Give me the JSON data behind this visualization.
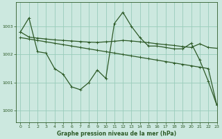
{
  "background_color": "#cce8df",
  "grid_color": "#99ccbb",
  "line_color": "#2d5a27",
  "title": "Graphe pression niveau de la mer (hPa)",
  "xlim": [
    -0.5,
    23
  ],
  "ylim": [
    999.6,
    1003.85
  ],
  "yticks": [
    1000,
    1001,
    1002,
    1003
  ],
  "xticks": [
    0,
    1,
    2,
    3,
    4,
    5,
    6,
    7,
    8,
    9,
    10,
    11,
    12,
    13,
    14,
    15,
    16,
    17,
    18,
    19,
    20,
    21,
    22,
    23
  ],
  "series_volatile": [
    1002.8,
    1003.3,
    1002.1,
    1002.05,
    1001.5,
    1001.3,
    1000.85,
    1000.75,
    1001.0,
    1001.45,
    1001.15,
    1003.1,
    1003.5,
    1003.0,
    1002.6,
    1002.3,
    1002.3,
    1002.25,
    1002.2,
    1002.2,
    1002.4,
    1001.8,
    1001.05,
    1000.2
  ],
  "series_flat": [
    1002.8,
    1002.62,
    1002.58,
    1002.55,
    1002.52,
    1002.5,
    1002.48,
    1002.46,
    1002.44,
    1002.43,
    1002.45,
    1002.47,
    1002.5,
    1002.48,
    1002.45,
    1002.42,
    1002.38,
    1002.35,
    1002.32,
    1002.28,
    1002.25,
    1002.38,
    1002.25,
    1002.22
  ],
  "series_diagonal": [
    1002.6,
    1002.55,
    1002.5,
    1002.45,
    1002.4,
    1002.35,
    1002.3,
    1002.25,
    1002.2,
    1002.15,
    1002.1,
    1002.05,
    1002.0,
    1001.95,
    1001.9,
    1001.85,
    1001.8,
    1001.75,
    1001.7,
    1001.65,
    1001.6,
    1001.55,
    1001.5,
    1000.2
  ]
}
